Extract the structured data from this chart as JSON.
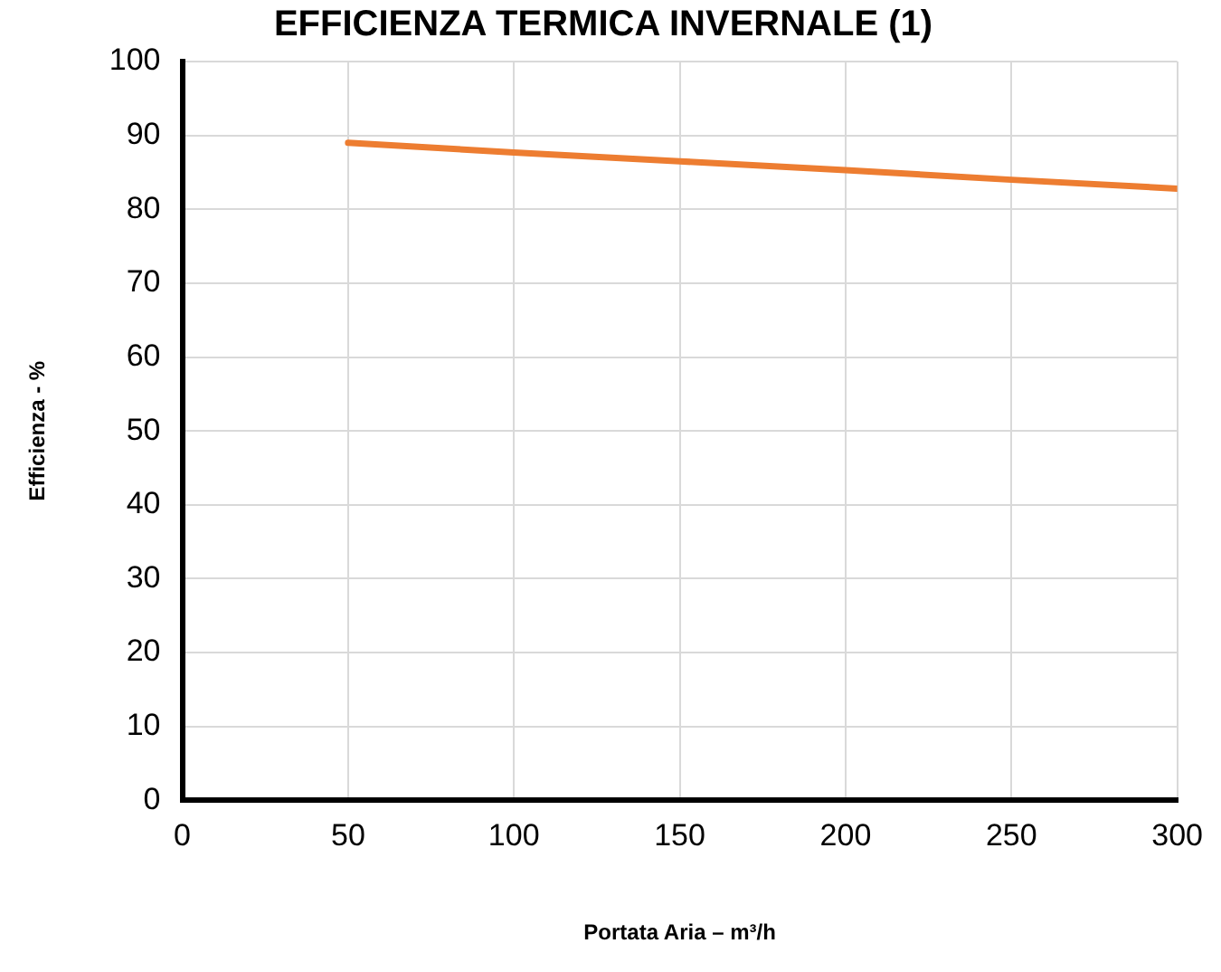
{
  "chart_data": {
    "type": "line",
    "title": "EFFICIENZA TERMICA INVERNALE (1)",
    "xlabel": "Portata Aria – m³/h",
    "ylabel": "Efficienza - %",
    "x": [
      50,
      100,
      150,
      200,
      250,
      300
    ],
    "series": [
      {
        "color": "#ed7d31",
        "values": [
          89,
          87.7,
          86.5,
          85.3,
          84,
          82.8
        ]
      }
    ],
    "xlim": [
      0,
      300
    ],
    "xticks": [
      0,
      50,
      100,
      150,
      200,
      250,
      300
    ],
    "ylim": [
      0,
      100
    ],
    "yticks": [
      0,
      10,
      20,
      30,
      40,
      50,
      60,
      70,
      80,
      90,
      100
    ],
    "grid": true,
    "legend": false,
    "marker": "none",
    "line_style": "solid"
  }
}
